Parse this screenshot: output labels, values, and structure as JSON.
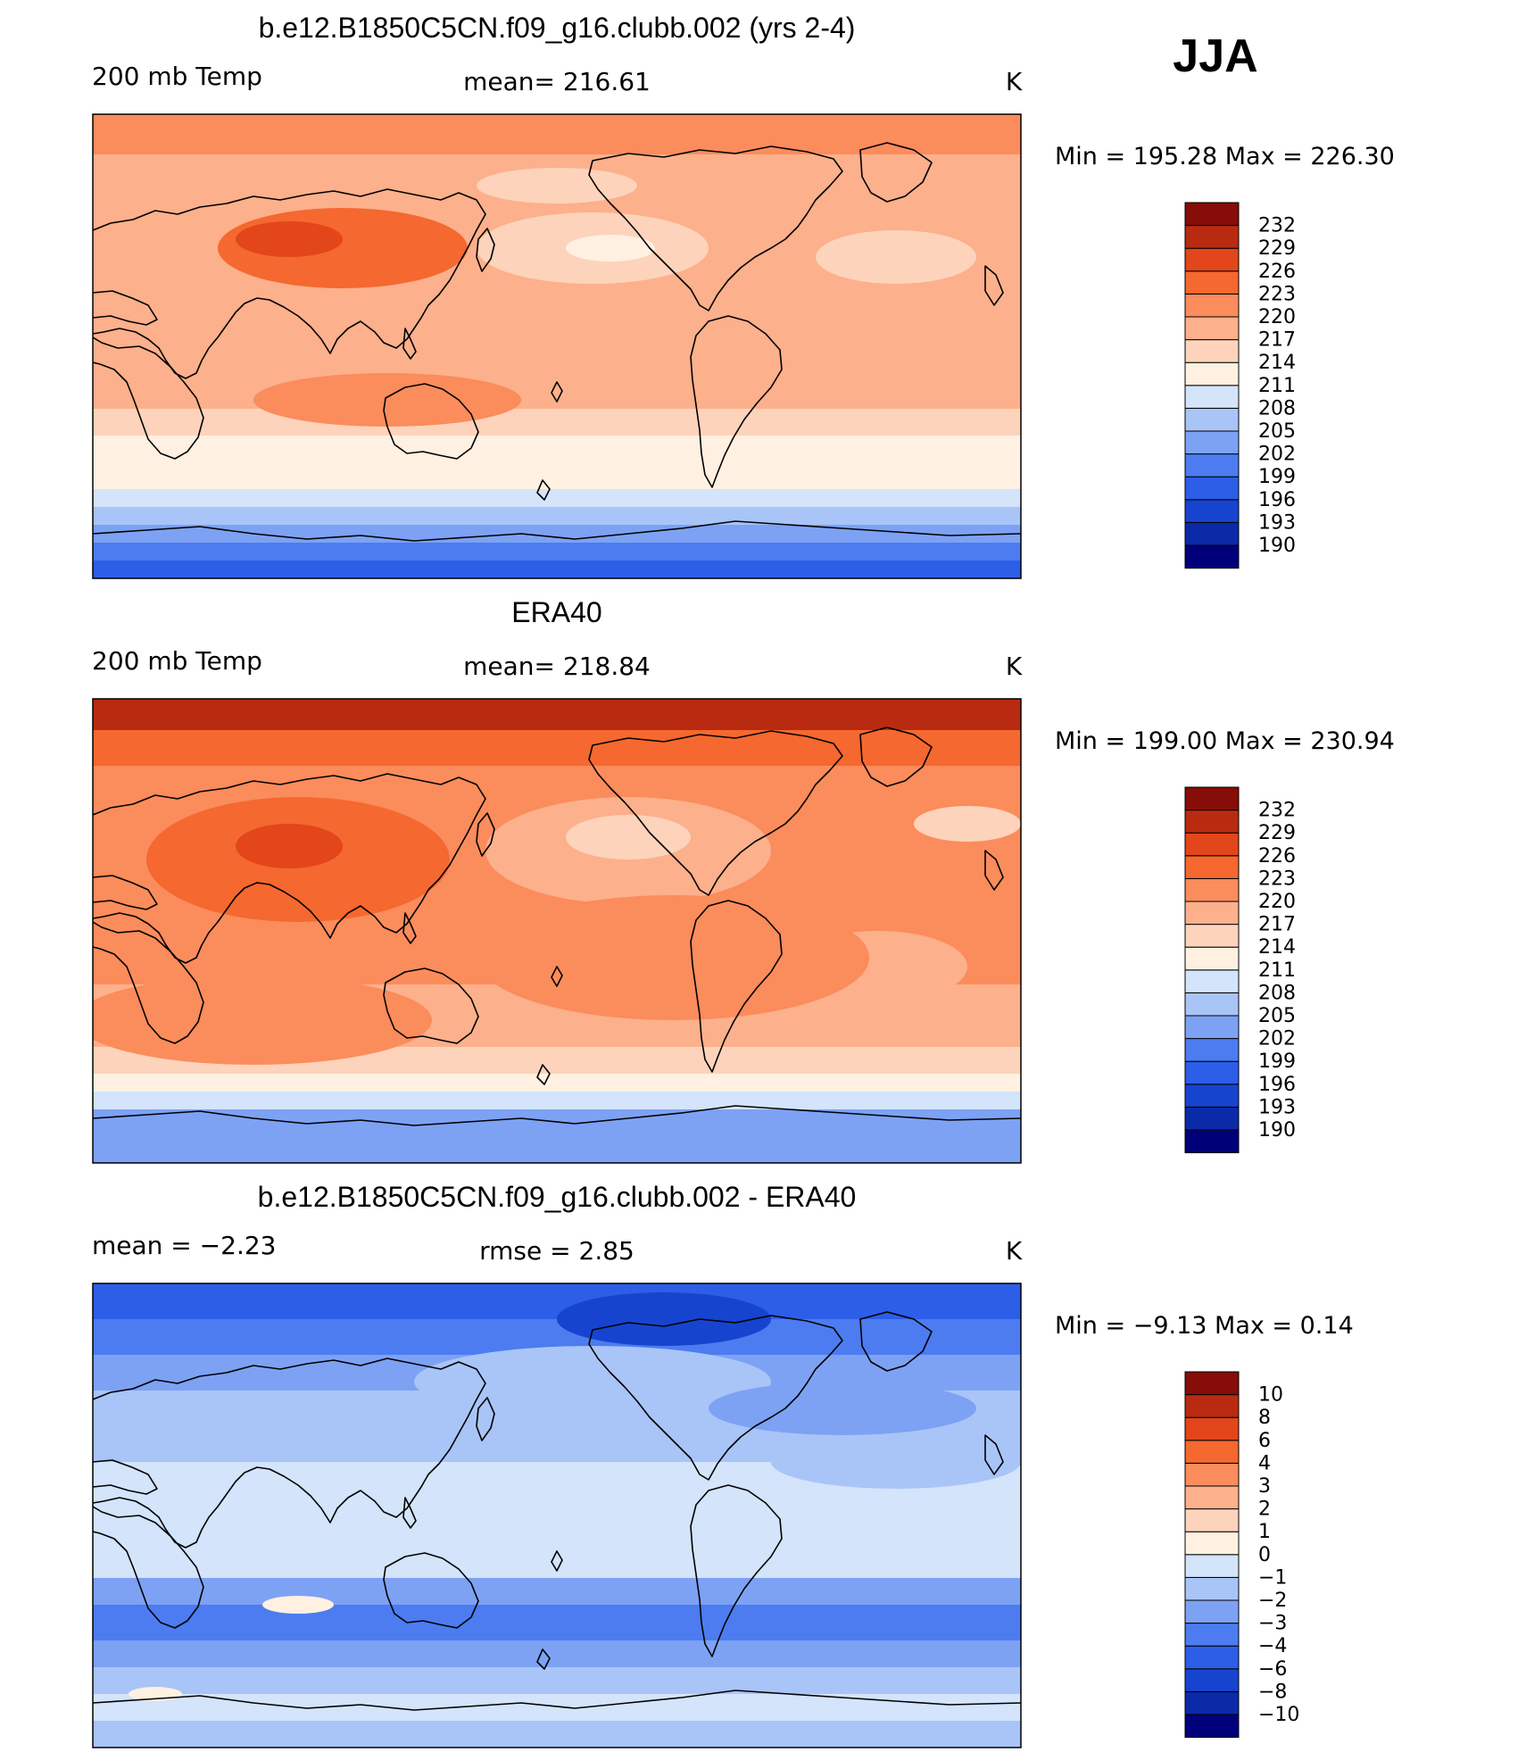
{
  "season": "JJA",
  "colors": {
    "abs": [
      "#00007a",
      "#0a2aa8",
      "#1744cf",
      "#2d5ee8",
      "#4c7cf0",
      "#7da2f4",
      "#a9c4f7",
      "#d3e4fb",
      "#fff0e2",
      "#fdd3bb",
      "#fcb08c",
      "#fb8c5c",
      "#f5682f",
      "#e2461a",
      "#b92b10",
      "#860d08"
    ],
    "diff": [
      "#00007a",
      "#0a2aa8",
      "#1744cf",
      "#2d5ee8",
      "#4c7cf0",
      "#7da2f4",
      "#a9c4f7",
      "#d3e4fb",
      "#fff0e2",
      "#fdd3bb",
      "#fcb08c",
      "#fb8c5c",
      "#f5682f",
      "#e2461a",
      "#b92b10",
      "#860d08"
    ]
  },
  "chart_data": [
    {
      "type": "heatmap",
      "title": "b.e12.B1850C5CN.f09_g16.clubb.002 (yrs 2-4)",
      "left_label": "200 mb Temp",
      "center_label": "mean=  216.61",
      "right_label": "K",
      "range_text": "Min  =  195.28  Max  =  226.30",
      "min": 195.28,
      "max": 226.3,
      "mean": 216.61,
      "colorbar_levels": [
        "232",
        "229",
        "226",
        "223",
        "220",
        "217",
        "214",
        "211",
        "208",
        "205",
        "202",
        "199",
        "196",
        "193",
        "190"
      ],
      "color_scale": "abs"
    },
    {
      "type": "heatmap",
      "title": "ERA40",
      "left_label": "200 mb Temp",
      "center_label": "mean=  218.84",
      "right_label": "K",
      "range_text": "Min  =  199.00  Max  =  230.94",
      "min": 199.0,
      "max": 230.94,
      "mean": 218.84,
      "colorbar_levels": [
        "232",
        "229",
        "226",
        "223",
        "220",
        "217",
        "214",
        "211",
        "208",
        "205",
        "202",
        "199",
        "196",
        "193",
        "190"
      ],
      "color_scale": "abs"
    },
    {
      "type": "heatmap",
      "title": "b.e12.B1850C5CN.f09_g16.clubb.002 - ERA40",
      "left_label": "mean  =     −2.23",
      "center_label": "rmse  =     2.85",
      "right_label": "K",
      "range_text": "Min  =    −9.13  Max  =     0.14",
      "min": -9.13,
      "max": 0.14,
      "mean": -2.23,
      "rmse": 2.85,
      "colorbar_levels": [
        "10",
        "8",
        "6",
        "4",
        "3",
        "2",
        "1",
        "0",
        "−1",
        "−2",
        "−3",
        "−4",
        "−6",
        "−8",
        "−10"
      ],
      "color_scale": "diff"
    }
  ]
}
